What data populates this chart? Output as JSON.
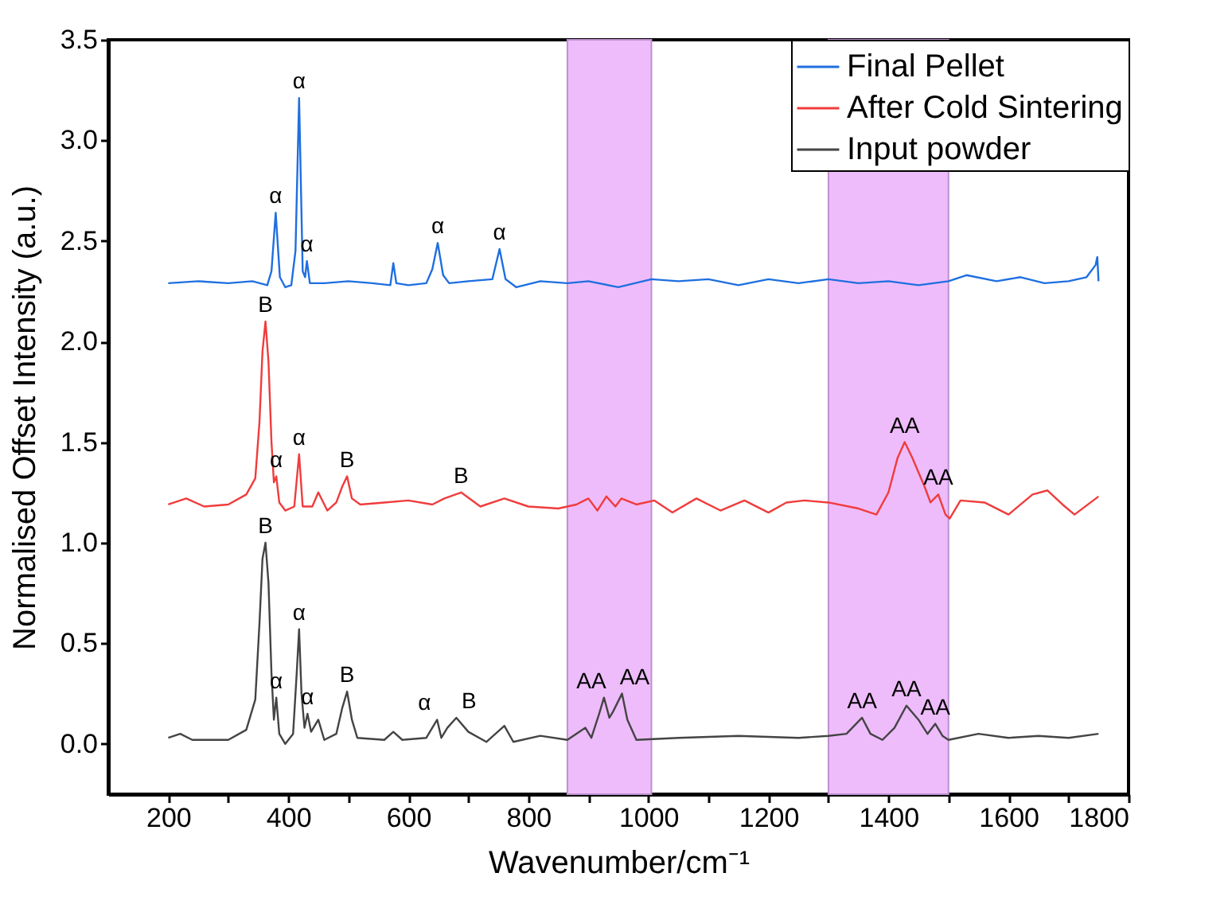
{
  "chart_data": {
    "type": "line",
    "xlabel": "Wavenumber/cm⁻¹",
    "ylabel": "Normalised Offset Intensity (a.u.)",
    "xlim": [
      100,
      1800
    ],
    "ylim": [
      -0.25,
      3.5
    ],
    "xticks": [
      200,
      {
        "value": 300,
        "label": null
      },
      400,
      {
        "value": 500,
        "label": null
      },
      600,
      {
        "value": 700,
        "label": null
      },
      800,
      {
        "value": 900,
        "label": null
      },
      1000,
      {
        "value": 1100,
        "label": null
      },
      1200,
      {
        "value": 1300,
        "label": null
      },
      1400,
      {
        "value": 1500,
        "label": null
      },
      1600,
      {
        "value": 1700,
        "label": null
      },
      1800
    ],
    "yticks": [
      {
        "value": 0,
        "label": "0.0"
      },
      {
        "value": 0.5,
        "label": "0.5"
      },
      {
        "value": 1,
        "label": "1.0"
      },
      {
        "value": 1.5,
        "label": "1.5"
      },
      {
        "value": 2,
        "label": "2.0"
      },
      {
        "value": 2.5,
        "label": "2.5"
      },
      {
        "value": 3,
        "label": "3.0"
      },
      {
        "value": 3.5,
        "label": "3.5"
      }
    ],
    "grid": false,
    "legend": "top right",
    "line_style": "solid",
    "marker": "none",
    "bands": [
      {
        "axis": "x",
        "from": 865,
        "to": 1005,
        "color": "#eebcfb"
      },
      {
        "axis": "x",
        "from": 1300,
        "to": 1500,
        "color": "#eebcfb"
      }
    ],
    "series": [
      {
        "name": "Final Pellet",
        "color": "#1f6fe0",
        "x": [
          200,
          250,
          300,
          340,
          365,
          372,
          379,
          386,
          395,
          405,
          412,
          418,
          424,
          428,
          431,
          436,
          460,
          500,
          540,
          570,
          575,
          580,
          600,
          630,
          640,
          649,
          658,
          668,
          700,
          740,
          752,
          762,
          780,
          820,
          865,
          900,
          950,
          1005,
          1050,
          1100,
          1150,
          1200,
          1250,
          1300,
          1350,
          1400,
          1450,
          1500,
          1530,
          1580,
          1620,
          1660,
          1700,
          1730,
          1745,
          1748,
          1750
        ],
        "values": [
          2.29,
          2.3,
          2.29,
          2.3,
          2.28,
          2.35,
          2.64,
          2.32,
          2.27,
          2.28,
          2.45,
          3.21,
          2.35,
          2.32,
          2.4,
          2.29,
          2.29,
          2.3,
          2.29,
          2.28,
          2.39,
          2.29,
          2.28,
          2.29,
          2.36,
          2.49,
          2.33,
          2.29,
          2.3,
          2.31,
          2.46,
          2.31,
          2.27,
          2.3,
          2.29,
          2.3,
          2.27,
          2.31,
          2.3,
          2.31,
          2.28,
          2.31,
          2.29,
          2.31,
          2.29,
          2.3,
          2.28,
          2.3,
          2.33,
          2.3,
          2.32,
          2.29,
          2.3,
          2.32,
          2.38,
          2.42,
          2.3
        ]
      },
      {
        "name": "After Cold Sintering",
        "color": "#f03c3c",
        "x": [
          200,
          230,
          260,
          300,
          330,
          345,
          352,
          357,
          362,
          367,
          372,
          376,
          380,
          385,
          395,
          410,
          418,
          424,
          440,
          450,
          465,
          480,
          490,
          498,
          506,
          520,
          560,
          600,
          640,
          660,
          688,
          720,
          760,
          800,
          850,
          880,
          900,
          915,
          930,
          945,
          955,
          980,
          1010,
          1040,
          1080,
          1120,
          1160,
          1200,
          1230,
          1260,
          1300,
          1350,
          1380,
          1400,
          1415,
          1427,
          1440,
          1460,
          1470,
          1483,
          1495,
          1502,
          1520,
          1560,
          1600,
          1640,
          1665,
          1690,
          1710,
          1750
        ],
        "values": [
          1.19,
          1.22,
          1.18,
          1.19,
          1.24,
          1.32,
          1.6,
          1.95,
          2.1,
          1.9,
          1.5,
          1.3,
          1.33,
          1.2,
          1.16,
          1.18,
          1.44,
          1.18,
          1.18,
          1.25,
          1.16,
          1.2,
          1.28,
          1.33,
          1.22,
          1.19,
          1.2,
          1.21,
          1.19,
          1.22,
          1.25,
          1.18,
          1.22,
          1.18,
          1.17,
          1.19,
          1.22,
          1.16,
          1.23,
          1.18,
          1.22,
          1.19,
          1.21,
          1.15,
          1.22,
          1.16,
          1.21,
          1.15,
          1.2,
          1.21,
          1.2,
          1.17,
          1.14,
          1.25,
          1.42,
          1.5,
          1.42,
          1.28,
          1.2,
          1.24,
          1.14,
          1.12,
          1.21,
          1.2,
          1.14,
          1.24,
          1.26,
          1.19,
          1.14,
          1.23
        ]
      },
      {
        "name": "Input powder",
        "color": "#444444",
        "x": [
          200,
          220,
          240,
          300,
          330,
          345,
          352,
          357,
          362,
          367,
          372,
          376,
          380,
          385,
          395,
          408,
          414,
          418,
          422,
          427,
          432,
          438,
          450,
          460,
          480,
          490,
          498,
          506,
          515,
          560,
          575,
          590,
          630,
          648,
          655,
          665,
          680,
          700,
          730,
          760,
          775,
          820,
          865,
          895,
          905,
          918,
          926,
          935,
          941,
          956,
          965,
          980,
          1050,
          1150,
          1250,
          1300,
          1330,
          1356,
          1370,
          1390,
          1410,
          1430,
          1450,
          1465,
          1478,
          1490,
          1500,
          1550,
          1600,
          1650,
          1700,
          1750
        ],
        "values": [
          0.03,
          0.05,
          0.02,
          0.02,
          0.07,
          0.22,
          0.6,
          0.92,
          1.0,
          0.8,
          0.35,
          0.12,
          0.23,
          0.05,
          0.0,
          0.05,
          0.35,
          0.57,
          0.25,
          0.08,
          0.15,
          0.06,
          0.12,
          0.02,
          0.05,
          0.18,
          0.26,
          0.12,
          0.03,
          0.02,
          0.06,
          0.02,
          0.03,
          0.12,
          0.03,
          0.08,
          0.13,
          0.06,
          0.01,
          0.09,
          0.01,
          0.04,
          0.02,
          0.08,
          0.03,
          0.15,
          0.23,
          0.13,
          0.16,
          0.25,
          0.12,
          0.02,
          0.03,
          0.04,
          0.03,
          0.04,
          0.05,
          0.13,
          0.05,
          0.02,
          0.08,
          0.19,
          0.12,
          0.05,
          0.1,
          0.04,
          0.02,
          0.05,
          0.03,
          0.04,
          0.03,
          0.05
        ]
      }
    ],
    "annotations": [
      {
        "text": "α",
        "x": 379,
        "y": 2.64
      },
      {
        "text": "α",
        "x": 418,
        "y": 3.21
      },
      {
        "text": "α",
        "x": 431,
        "y": 2.4
      },
      {
        "text": "α",
        "x": 649,
        "y": 2.49
      },
      {
        "text": "α",
        "x": 752,
        "y": 2.46
      },
      {
        "text": "B",
        "x": 362,
        "y": 2.1
      },
      {
        "text": "α",
        "x": 380,
        "y": 1.33
      },
      {
        "text": "α",
        "x": 418,
        "y": 1.44
      },
      {
        "text": "B",
        "x": 498,
        "y": 1.33
      },
      {
        "text": "B",
        "x": 688,
        "y": 1.25
      },
      {
        "text": "AA",
        "x": 1427,
        "y": 1.5
      },
      {
        "text": "AA",
        "x": 1483,
        "y": 1.24
      },
      {
        "text": "B",
        "x": 362,
        "y": 1.0
      },
      {
        "text": "α",
        "x": 380,
        "y": 0.23
      },
      {
        "text": "α",
        "x": 418,
        "y": 0.57
      },
      {
        "text": "α",
        "x": 432,
        "y": 0.15
      },
      {
        "text": "B",
        "x": 498,
        "y": 0.26
      },
      {
        "text": "α",
        "x": 648,
        "y": 0.12
      },
      {
        "text": "B",
        "x": 680,
        "y": 0.13
      },
      {
        "text": "AA",
        "x": 926,
        "y": 0.23
      },
      {
        "text": "AA",
        "x": 956,
        "y": 0.25
      },
      {
        "text": "AA",
        "x": 1356,
        "y": 0.13
      },
      {
        "text": "AA",
        "x": 1430,
        "y": 0.19
      },
      {
        "text": "AA",
        "x": 1478,
        "y": 0.1
      }
    ]
  }
}
